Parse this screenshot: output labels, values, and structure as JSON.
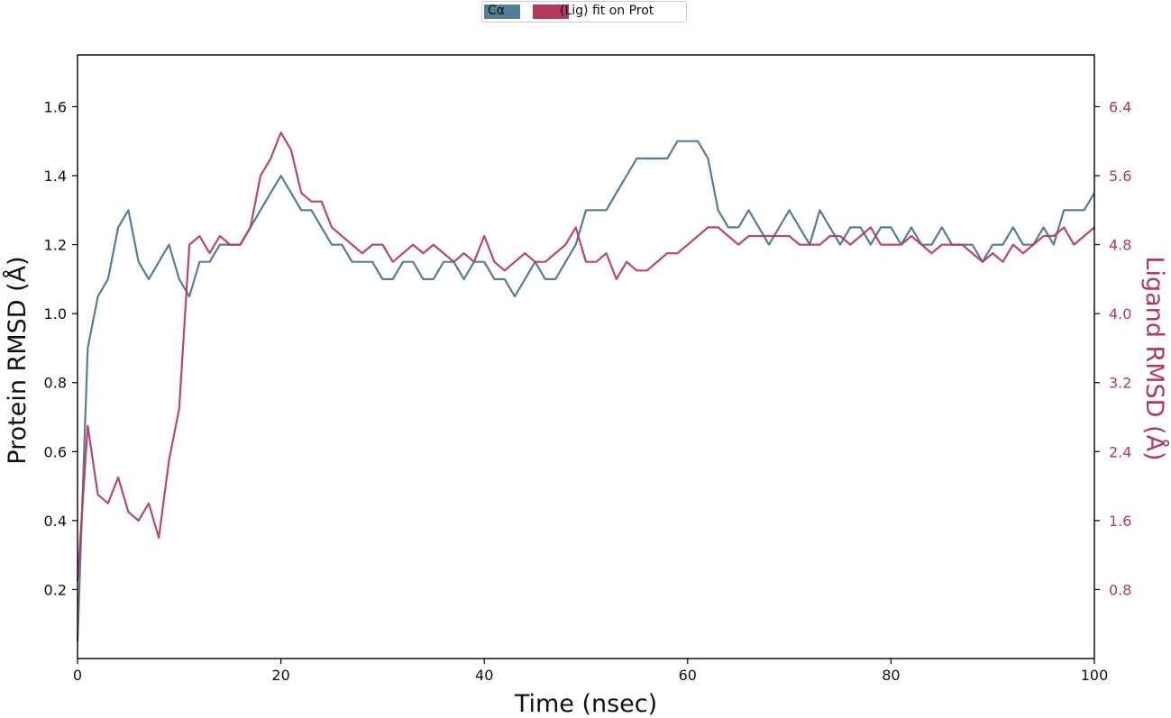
{
  "chart_data": {
    "type": "line",
    "xlabel": "Time (nsec)",
    "ylabel_left": "Protein RMSD (Å)",
    "ylabel_right": "Ligand RMSD (Å)",
    "xlim": [
      0,
      100
    ],
    "ylim_left": [
      0,
      1.75
    ],
    "ylim_right": [
      0,
      7.0
    ],
    "x_ticks": [
      0,
      20,
      40,
      60,
      80,
      100
    ],
    "y_left_ticks": [
      0.2,
      0.4,
      0.6,
      0.8,
      1.0,
      1.2,
      1.4,
      1.6
    ],
    "y_right_ticks": [
      0.8,
      1.6,
      2.4,
      3.2,
      4.0,
      4.8,
      5.6,
      6.4
    ],
    "y_left_tick_labels": [
      "0.2",
      "0.4",
      "0.6",
      "0.8",
      "1.0",
      "1.2",
      "1.4",
      "1.6"
    ],
    "y_right_tick_labels": [
      "0.8",
      "1.6",
      "2.4",
      "3.2",
      "4.0",
      "4.8",
      "5.6",
      "6.4"
    ],
    "x_tick_labels": [
      "0",
      "20",
      "40",
      "60",
      "80",
      "100"
    ],
    "legend": {
      "placement": "top-center",
      "entries": [
        "Cα",
        "(Lig) fit on Prot"
      ]
    },
    "colors": {
      "protein": "#557d99",
      "ligand": "#b23a5c",
      "right_axis": "#b23a5c"
    },
    "series": [
      {
        "name": "Cα",
        "axis": "left",
        "x": [
          0,
          1,
          2,
          3,
          4,
          5,
          6,
          7,
          8,
          9,
          10,
          11,
          12,
          13,
          14,
          15,
          16,
          17,
          18,
          19,
          20,
          21,
          22,
          23,
          24,
          25,
          26,
          27,
          28,
          29,
          30,
          31,
          32,
          33,
          34,
          35,
          36,
          37,
          38,
          39,
          40,
          41,
          42,
          43,
          44,
          45,
          46,
          47,
          48,
          49,
          50,
          51,
          52,
          53,
          54,
          55,
          56,
          57,
          58,
          59,
          60,
          61,
          62,
          63,
          64,
          65,
          66,
          67,
          68,
          69,
          70,
          71,
          72,
          73,
          74,
          75,
          76,
          77,
          78,
          79,
          80,
          81,
          82,
          83,
          84,
          85,
          86,
          87,
          88,
          89,
          90,
          91,
          92,
          93,
          94,
          95,
          96,
          97,
          98,
          99,
          100
        ],
        "values": [
          0.05,
          0.9,
          1.05,
          1.1,
          1.25,
          1.3,
          1.15,
          1.1,
          1.15,
          1.2,
          1.1,
          1.05,
          1.15,
          1.15,
          1.2,
          1.2,
          1.2,
          1.25,
          1.3,
          1.35,
          1.4,
          1.35,
          1.3,
          1.3,
          1.25,
          1.2,
          1.2,
          1.15,
          1.15,
          1.15,
          1.1,
          1.1,
          1.15,
          1.15,
          1.1,
          1.1,
          1.15,
          1.15,
          1.1,
          1.15,
          1.15,
          1.1,
          1.1,
          1.05,
          1.1,
          1.15,
          1.1,
          1.1,
          1.15,
          1.2,
          1.3,
          1.3,
          1.3,
          1.35,
          1.4,
          1.45,
          1.45,
          1.45,
          1.45,
          1.5,
          1.5,
          1.5,
          1.45,
          1.3,
          1.25,
          1.25,
          1.3,
          1.25,
          1.2,
          1.25,
          1.3,
          1.25,
          1.2,
          1.3,
          1.25,
          1.2,
          1.25,
          1.25,
          1.2,
          1.25,
          1.25,
          1.2,
          1.25,
          1.2,
          1.2,
          1.25,
          1.2,
          1.2,
          1.2,
          1.15,
          1.2,
          1.2,
          1.25,
          1.2,
          1.2,
          1.25,
          1.2,
          1.3,
          1.3,
          1.3,
          1.35
        ]
      },
      {
        "name": "(Lig) fit on Prot",
        "axis": "right",
        "x": [
          0,
          1,
          2,
          3,
          4,
          5,
          6,
          7,
          8,
          9,
          10,
          11,
          12,
          13,
          14,
          15,
          16,
          17,
          18,
          19,
          20,
          21,
          22,
          23,
          24,
          25,
          26,
          27,
          28,
          29,
          30,
          31,
          32,
          33,
          34,
          35,
          36,
          37,
          38,
          39,
          40,
          41,
          42,
          43,
          44,
          45,
          46,
          47,
          48,
          49,
          50,
          51,
          52,
          53,
          54,
          55,
          56,
          57,
          58,
          59,
          60,
          61,
          62,
          63,
          64,
          65,
          66,
          67,
          68,
          69,
          70,
          71,
          72,
          73,
          74,
          75,
          76,
          77,
          78,
          79,
          80,
          81,
          82,
          83,
          84,
          85,
          86,
          87,
          88,
          89,
          90,
          91,
          92,
          93,
          94,
          95,
          96,
          97,
          98,
          99,
          100
        ],
        "values": [
          0.9,
          2.7,
          1.9,
          1.8,
          2.1,
          1.7,
          1.6,
          1.8,
          1.4,
          2.3,
          2.9,
          4.8,
          4.9,
          4.7,
          4.9,
          4.8,
          4.8,
          5.0,
          5.6,
          5.8,
          6.1,
          5.9,
          5.4,
          5.3,
          5.3,
          5.0,
          4.9,
          4.8,
          4.7,
          4.8,
          4.8,
          4.6,
          4.7,
          4.8,
          4.7,
          4.8,
          4.7,
          4.6,
          4.7,
          4.6,
          4.9,
          4.6,
          4.5,
          4.6,
          4.7,
          4.6,
          4.6,
          4.7,
          4.8,
          5.0,
          4.6,
          4.6,
          4.7,
          4.4,
          4.6,
          4.5,
          4.5,
          4.6,
          4.7,
          4.7,
          4.8,
          4.9,
          5.0,
          5.0,
          4.9,
          4.8,
          4.9,
          4.9,
          4.9,
          4.9,
          4.9,
          4.8,
          4.8,
          4.8,
          4.9,
          4.9,
          4.8,
          4.9,
          5.0,
          4.8,
          4.8,
          4.8,
          4.9,
          4.8,
          4.7,
          4.8,
          4.8,
          4.8,
          4.7,
          4.6,
          4.7,
          4.6,
          4.8,
          4.7,
          4.8,
          4.9,
          4.9,
          5.0,
          4.8,
          4.9,
          5.0
        ]
      }
    ]
  }
}
